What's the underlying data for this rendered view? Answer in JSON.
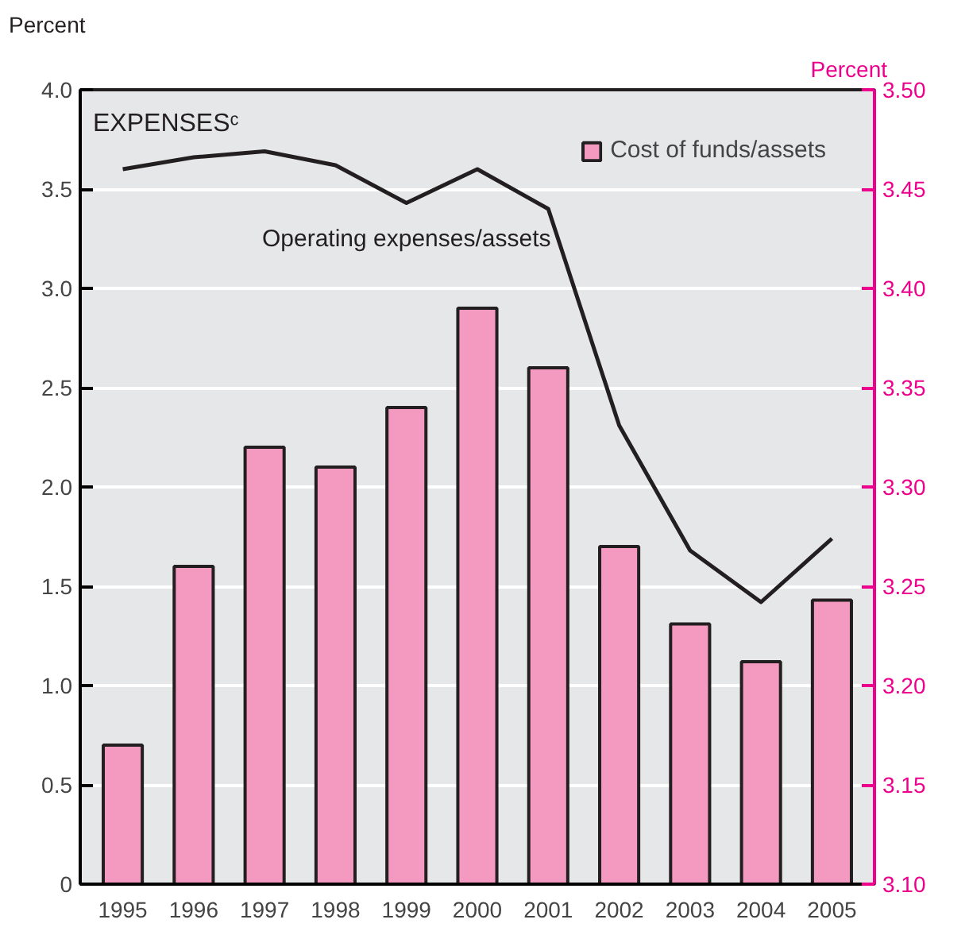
{
  "chart_data": {
    "type": "bar",
    "title": "EXPENSESᶜ",
    "ylabel": "Percent",
    "y2label": "Percent",
    "categories": [
      "1995",
      "1996",
      "1997",
      "1998",
      "1999",
      "2000",
      "2001",
      "2002",
      "2003",
      "2004",
      "2005"
    ],
    "series": [
      {
        "name": "Cost of funds/assets",
        "color": "#f49ac1",
        "values": [
          0.7,
          1.6,
          2.2,
          2.1,
          2.4,
          2.9,
          2.6,
          1.7,
          1.31,
          1.12,
          1.43
        ]
      },
      {
        "name": "Operating expenses/assets",
        "type": "line",
        "axis": "y2",
        "color": "#231f20",
        "values": [
          3.46,
          3.466,
          3.469,
          3.462,
          3.443,
          3.46,
          3.44,
          3.331,
          3.268,
          3.242,
          3.274
        ]
      }
    ],
    "ylim": [
      0,
      4.0
    ],
    "yticks": [
      {
        "value": 0,
        "label": "0"
      },
      {
        "value": 0.5,
        "label": "0.5"
      },
      {
        "value": 1,
        "label": "1.0"
      },
      {
        "value": 1.5,
        "label": "1.5"
      },
      {
        "value": 2,
        "label": "2.0"
      },
      {
        "value": 2.5,
        "label": "2.5"
      },
      {
        "value": 3,
        "label": "3.0"
      },
      {
        "value": 3.5,
        "label": "3.5"
      },
      {
        "value": 4,
        "label": "4.0"
      }
    ],
    "y2lim": [
      3.1,
      3.5
    ],
    "y2ticks": [
      {
        "value": 3.1,
        "label": "3.10"
      },
      {
        "value": 3.15,
        "label": "3.15"
      },
      {
        "value": 3.2,
        "label": "3.20"
      },
      {
        "value": 3.25,
        "label": "3.25"
      },
      {
        "value": 3.3,
        "label": "3.30"
      },
      {
        "value": 3.35,
        "label": "3.35"
      },
      {
        "value": 3.4,
        "label": "3.40"
      },
      {
        "value": 3.45,
        "label": "3.45"
      },
      {
        "value": 3.5,
        "label": "3.50"
      }
    ],
    "grid": "y",
    "legend": "top right"
  }
}
